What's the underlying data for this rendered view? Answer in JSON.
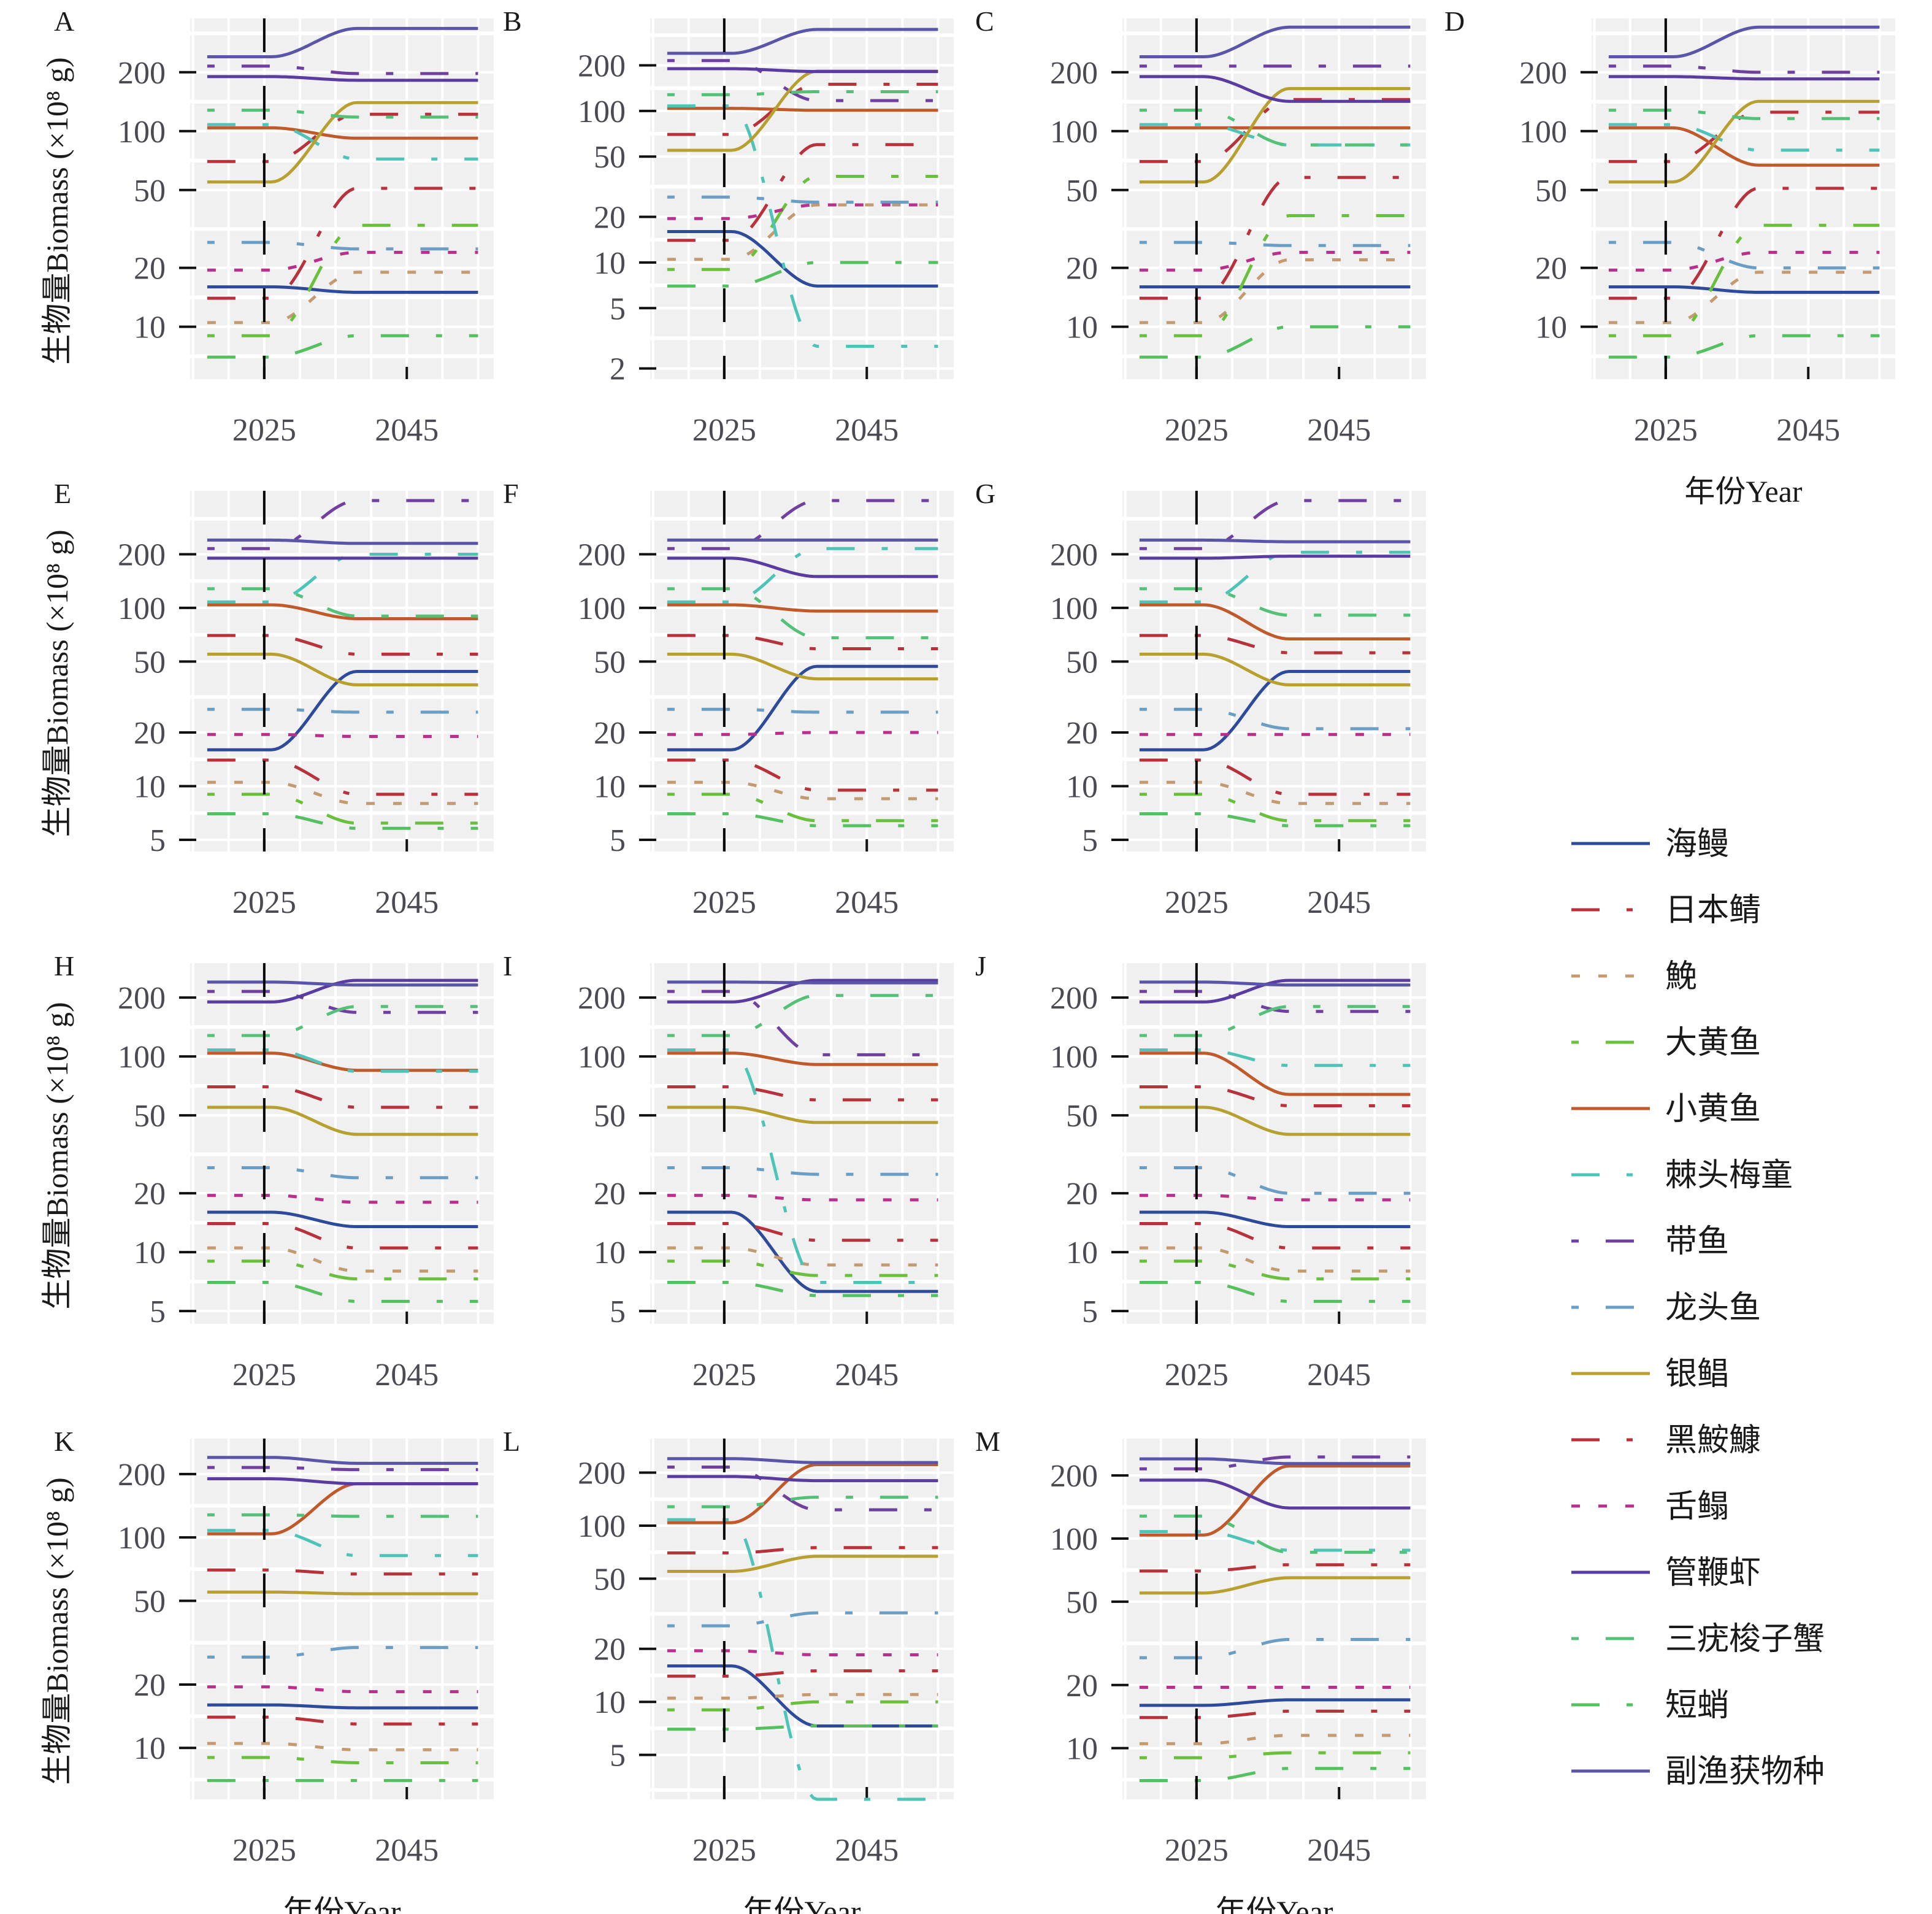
{
  "chart_data": {
    "type": "line",
    "layout": "small-multiples",
    "yscale": "log",
    "ylabel": "生物量Biomass (×10⁸ g)",
    "xlabel": "年份Year",
    "x_ticks": [
      2025,
      2045
    ],
    "xlim": [
      2014.6,
      2057.2
    ],
    "grid": true,
    "reference_line": {
      "x": 2025,
      "style": "dashed",
      "color": "#000000"
    },
    "x_years": {
      "start": 2017,
      "end": 2055,
      "change_start": 2026,
      "change_end": 2038
    },
    "legend": {
      "placement": "right"
    },
    "species": [
      {
        "key": "conger",
        "name": "海鳗",
        "color": "#2e4a9a",
        "dash": "solid",
        "initial": 16
      },
      {
        "key": "mackerel",
        "name": "日本鲭",
        "color": "#b8323c",
        "dash": "longshort",
        "initial": 70
      },
      {
        "key": "croaker_m",
        "name": "鮸",
        "color": "#c49a70",
        "dash": "dotted",
        "initial": 10.5
      },
      {
        "key": "large_yellow",
        "name": "大黄鱼",
        "color": "#6abf3c",
        "dash": "shortlong",
        "initial": 9
      },
      {
        "key": "small_yellow",
        "name": "小黄鱼",
        "color": "#c05a2a",
        "dash": "solid",
        "initial": 104
      },
      {
        "key": "collichthys",
        "name": "棘头梅童",
        "color": "#4ec4b8",
        "dash": "longshort",
        "initial": 108
      },
      {
        "key": "hairtail",
        "name": "带鱼",
        "color": "#7040a0",
        "dash": "shortlong",
        "initial": 215
      },
      {
        "key": "bombay",
        "name": "龙头鱼",
        "color": "#6a9ec4",
        "dash": "shortlong",
        "initial": 27
      },
      {
        "key": "pomfret",
        "name": "银鲳",
        "color": "#b8a030",
        "dash": "solid",
        "initial": 55
      },
      {
        "key": "anglerfish",
        "name": "黑鮟鱇",
        "color": "#b8323c",
        "dash": "longshort",
        "initial": 14
      },
      {
        "key": "tonguefish",
        "name": "舌鳎",
        "color": "#b8308c",
        "dash": "dotted",
        "initial": 19.5
      },
      {
        "key": "shrimp",
        "name": "管鞭虾",
        "color": "#5a3ca0",
        "dash": "solid",
        "initial": 190
      },
      {
        "key": "crab",
        "name": "三疣梭子蟹",
        "color": "#54c078",
        "dash": "shortlong",
        "initial": 128
      },
      {
        "key": "octopus",
        "name": "短蛸",
        "color": "#54c060",
        "dash": "longshort",
        "initial": 7
      },
      {
        "key": "bycatch",
        "name": "副渔获物种",
        "color": "#5a55a8",
        "dash": "solid",
        "initial": 240
      }
    ],
    "panels": [
      {
        "id": "A",
        "ylim": [
          5.4,
          377
        ],
        "yticks": [
          10,
          20,
          50,
          100,
          200
        ],
        "xlabel_shown": false,
        "ylabel_shown": true,
        "final": {
          "conger": 15,
          "mackerel": 122,
          "croaker_m": 19,
          "large_yellow": 33,
          "small_yellow": 92,
          "collichthys": 72,
          "hairtail": 197,
          "bombay": 25,
          "pomfret": 140,
          "anglerfish": 51,
          "tonguefish": 24,
          "shrimp": 182,
          "crab": 118,
          "octopus": 9,
          "bycatch": 335
        }
      },
      {
        "id": "B",
        "ylim": [
          1.7,
          408
        ],
        "yticks": [
          2,
          5,
          10,
          20,
          50,
          100,
          200
        ],
        "xlabel_shown": false,
        "ylabel_shown": false,
        "final": {
          "conger": 7,
          "mackerel": 150,
          "croaker_m": 24,
          "large_yellow": 37,
          "small_yellow": 101,
          "collichthys": 2.8,
          "hairtail": 117,
          "bombay": 25,
          "pomfret": 183,
          "anglerfish": 60,
          "tonguefish": 24,
          "shrimp": 182,
          "crab": 134,
          "octopus": 10,
          "bycatch": 345
        }
      },
      {
        "id": "C",
        "ylim": [
          5.4,
          377
        ],
        "yticks": [
          10,
          20,
          50,
          100,
          200
        ],
        "xlabel_shown": false,
        "ylabel_shown": false,
        "final": {
          "conger": 16,
          "mackerel": 145,
          "croaker_m": 22,
          "large_yellow": 37,
          "small_yellow": 104,
          "collichthys": 85,
          "hairtail": 215,
          "bombay": 26,
          "pomfret": 165,
          "anglerfish": 58,
          "tonguefish": 24,
          "shrimp": 142,
          "crab": 85,
          "octopus": 10,
          "bycatch": 340
        }
      },
      {
        "id": "D",
        "ylim": [
          5.4,
          377
        ],
        "yticks": [
          10,
          20,
          50,
          100,
          200
        ],
        "xlabel_shown": true,
        "ylabel_shown": false,
        "final": {
          "conger": 15,
          "mackerel": 125,
          "croaker_m": 19,
          "large_yellow": 33,
          "small_yellow": 67,
          "collichthys": 80,
          "hairtail": 200,
          "bombay": 20,
          "pomfret": 142,
          "anglerfish": 51,
          "tonguefish": 24,
          "shrimp": 185,
          "crab": 116,
          "octopus": 9,
          "bycatch": 340
        }
      },
      {
        "id": "E",
        "ylim": [
          4.3,
          454
        ],
        "yticks": [
          5,
          10,
          20,
          50,
          100,
          200
        ],
        "xlabel_shown": false,
        "ylabel_shown": true,
        "final": {
          "conger": 44,
          "mackerel": 55,
          "croaker_m": 8,
          "large_yellow": 6.2,
          "small_yellow": 87,
          "collichthys": 200,
          "hairtail": 400,
          "bombay": 26,
          "pomfret": 37,
          "anglerfish": 9,
          "tonguefish": 19,
          "shrimp": 190,
          "crab": 90,
          "octopus": 5.8,
          "bycatch": 230
        }
      },
      {
        "id": "F",
        "ylim": [
          4.3,
          454
        ],
        "yticks": [
          5,
          10,
          20,
          50,
          100,
          200
        ],
        "xlabel_shown": false,
        "ylabel_shown": false,
        "final": {
          "conger": 47,
          "mackerel": 59,
          "croaker_m": 8.5,
          "large_yellow": 6.4,
          "small_yellow": 96,
          "collichthys": 215,
          "hairtail": 400,
          "bombay": 26,
          "pomfret": 40,
          "anglerfish": 9.5,
          "tonguefish": 20,
          "shrimp": 150,
          "crab": 68,
          "octopus": 6,
          "bycatch": 240
        }
      },
      {
        "id": "G",
        "ylim": [
          4.3,
          454
        ],
        "yticks": [
          5,
          10,
          20,
          50,
          100,
          200
        ],
        "xlabel_shown": false,
        "ylabel_shown": false,
        "final": {
          "conger": 44,
          "mackerel": 56,
          "croaker_m": 8,
          "large_yellow": 6.4,
          "small_yellow": 67,
          "collichthys": 205,
          "hairtail": 400,
          "bombay": 21,
          "pomfret": 37,
          "anglerfish": 9,
          "tonguefish": 19.5,
          "shrimp": 195,
          "crab": 91,
          "octopus": 6,
          "bycatch": 235
        }
      },
      {
        "id": "H",
        "ylim": [
          4.3,
          300
        ],
        "yticks": [
          5,
          10,
          20,
          50,
          100,
          200
        ],
        "xlabel_shown": false,
        "ylabel_shown": true,
        "final": {
          "conger": 13.5,
          "mackerel": 55,
          "croaker_m": 8,
          "large_yellow": 7.3,
          "small_yellow": 85,
          "collichthys": 84,
          "hairtail": 168,
          "bombay": 24,
          "pomfret": 40,
          "anglerfish": 10.5,
          "tonguefish": 18,
          "shrimp": 245,
          "crab": 180,
          "octopus": 5.6,
          "bycatch": 232
        }
      },
      {
        "id": "I",
        "ylim": [
          4.3,
          300
        ],
        "yticks": [
          5,
          10,
          20,
          50,
          100,
          200
        ],
        "xlabel_shown": false,
        "ylabel_shown": false,
        "final": {
          "conger": 6.3,
          "mackerel": 60,
          "croaker_m": 8.6,
          "large_yellow": 7.6,
          "small_yellow": 91,
          "collichthys": 7,
          "hairtail": 102,
          "bombay": 25,
          "pomfret": 46,
          "anglerfish": 11.5,
          "tonguefish": 18.5,
          "shrimp": 245,
          "crab": 205,
          "octopus": 6,
          "bycatch": 238
        }
      },
      {
        "id": "J",
        "ylim": [
          4.3,
          300
        ],
        "yticks": [
          5,
          10,
          20,
          50,
          100,
          200
        ],
        "xlabel_shown": false,
        "ylabel_shown": false,
        "final": {
          "conger": 13.5,
          "mackerel": 56,
          "croaker_m": 8,
          "large_yellow": 7.3,
          "small_yellow": 64,
          "collichthys": 90,
          "hairtail": 170,
          "bombay": 20,
          "pomfret": 40,
          "anglerfish": 10.5,
          "tonguefish": 18.5,
          "shrimp": 245,
          "crab": 180,
          "octopus": 5.6,
          "bycatch": 232
        }
      },
      {
        "id": "K",
        "ylim": [
          5.7,
          295
        ],
        "yticks": [
          10,
          20,
          50,
          100,
          200
        ],
        "xlabel_shown": true,
        "ylabel_shown": true,
        "final": {
          "conger": 15.5,
          "mackerel": 67,
          "croaker_m": 9.8,
          "large_yellow": 8.5,
          "small_yellow": 180,
          "collichthys": 82,
          "hairtail": 210,
          "bombay": 30,
          "pomfret": 54,
          "anglerfish": 13,
          "tonguefish": 18.5,
          "shrimp": 180,
          "crab": 126,
          "octopus": 7,
          "bycatch": 225
        }
      },
      {
        "id": "L",
        "ylim": [
          2.8,
          312
        ],
        "yticks": [
          5,
          10,
          20,
          50,
          100,
          200
        ],
        "xlabel_shown": true,
        "ylabel_shown": false,
        "final": {
          "conger": 7.3,
          "mackerel": 75,
          "croaker_m": 11,
          "large_yellow": 10,
          "small_yellow": 222,
          "collichthys": 2.8,
          "hairtail": 123,
          "bombay": 32,
          "pomfret": 67,
          "anglerfish": 15,
          "tonguefish": 18.5,
          "shrimp": 180,
          "crab": 145,
          "octopus": 7.3,
          "bycatch": 228
        }
      },
      {
        "id": "M",
        "ylim": [
          5.7,
          300
        ],
        "yticks": [
          10,
          20,
          50,
          100,
          200
        ],
        "xlabel_shown": true,
        "ylabel_shown": false,
        "final": {
          "conger": 17,
          "mackerel": 75,
          "croaker_m": 11.5,
          "large_yellow": 9.5,
          "small_yellow": 222,
          "collichthys": 88,
          "hairtail": 245,
          "bombay": 33,
          "pomfret": 65,
          "anglerfish": 15,
          "tonguefish": 19.5,
          "shrimp": 140,
          "crab": 86,
          "octopus": 8,
          "bycatch": 228
        }
      }
    ]
  }
}
